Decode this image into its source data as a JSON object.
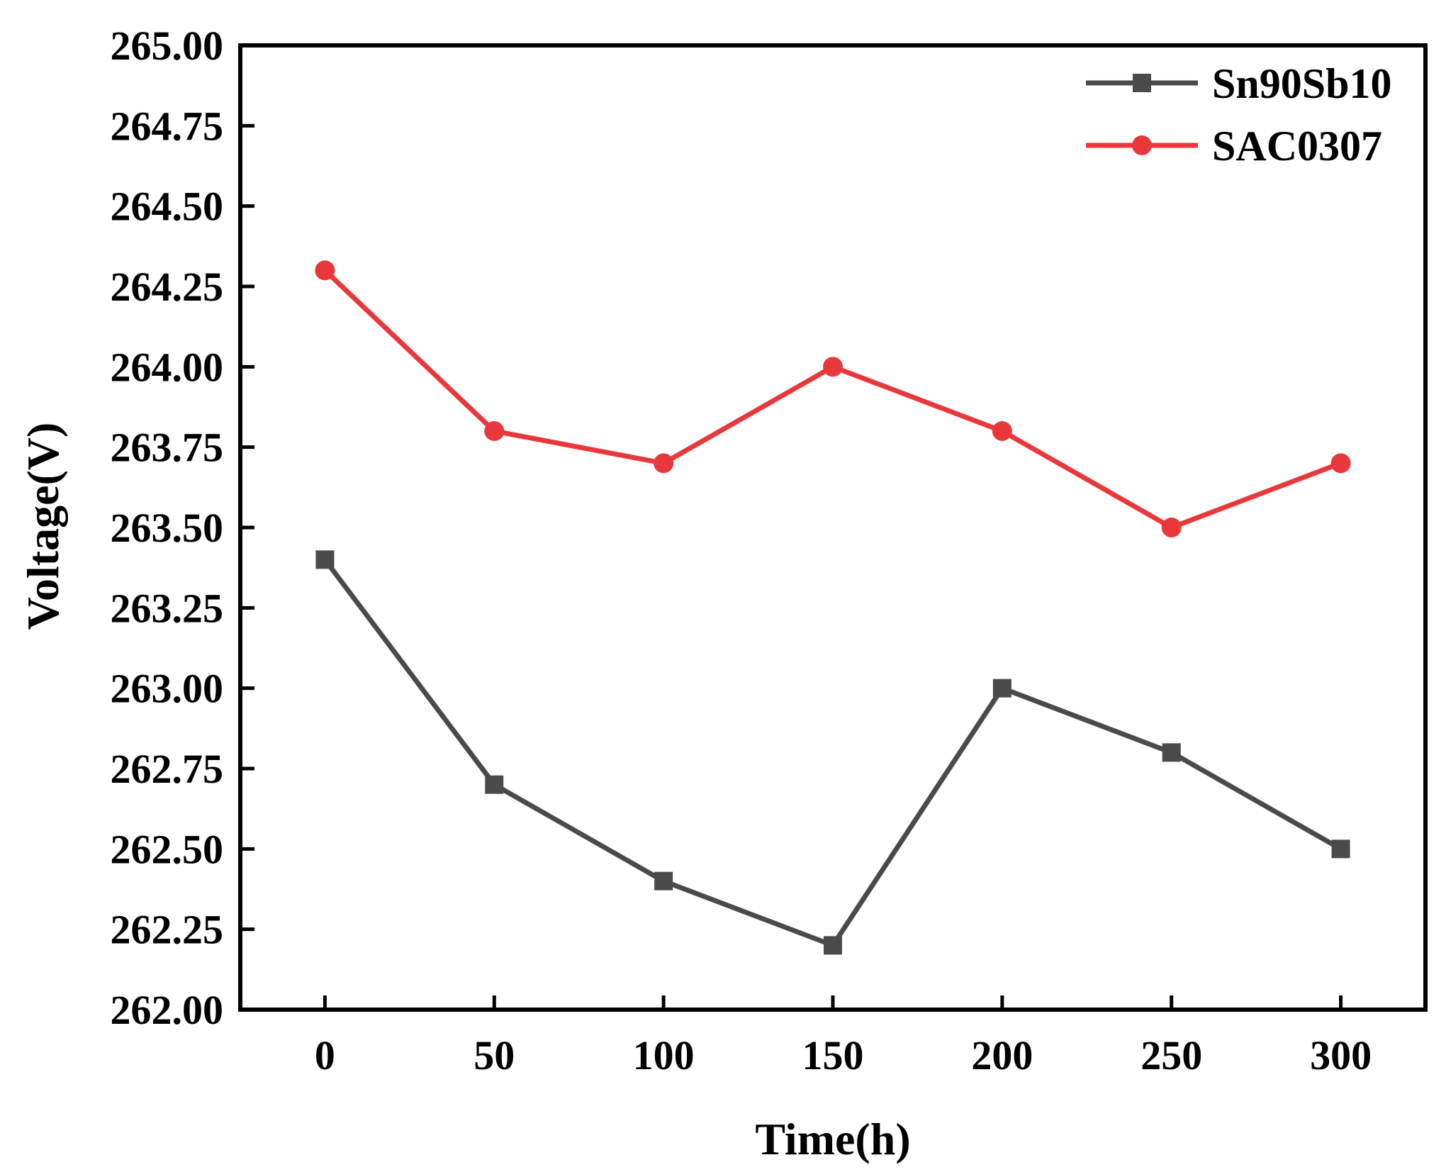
{
  "chart_data": {
    "type": "line",
    "title": "",
    "xlabel": "Time(h)",
    "ylabel": "Voltage(V)",
    "x": [
      0,
      50,
      100,
      150,
      200,
      250,
      300
    ],
    "x_tick_labels": [
      "0",
      "50",
      "100",
      "150",
      "200",
      "250",
      "300"
    ],
    "xlim": [
      -25,
      325
    ],
    "ylim": [
      262.0,
      265.0
    ],
    "y_tick_labels": [
      "262.00",
      "262.25",
      "262.50",
      "262.75",
      "263.00",
      "263.25",
      "263.50",
      "263.75",
      "264.00",
      "264.25",
      "264.50",
      "264.75",
      "265.00"
    ],
    "y_ticks": [
      262.0,
      262.25,
      262.5,
      262.75,
      263.0,
      263.25,
      263.5,
      263.75,
      264.0,
      264.25,
      264.5,
      264.75,
      265.0
    ],
    "grid": false,
    "legend_position": "top-right",
    "series": [
      {
        "name": "Sn90Sb10",
        "marker": "square",
        "color": "#4a4a4a",
        "values": [
          263.4,
          262.7,
          262.4,
          262.2,
          263.0,
          262.8,
          262.5
        ]
      },
      {
        "name": "SAC0307",
        "marker": "circle",
        "color": "#e8383b",
        "values": [
          264.3,
          263.8,
          263.7,
          264.0,
          263.8,
          263.5,
          263.7
        ]
      }
    ]
  }
}
